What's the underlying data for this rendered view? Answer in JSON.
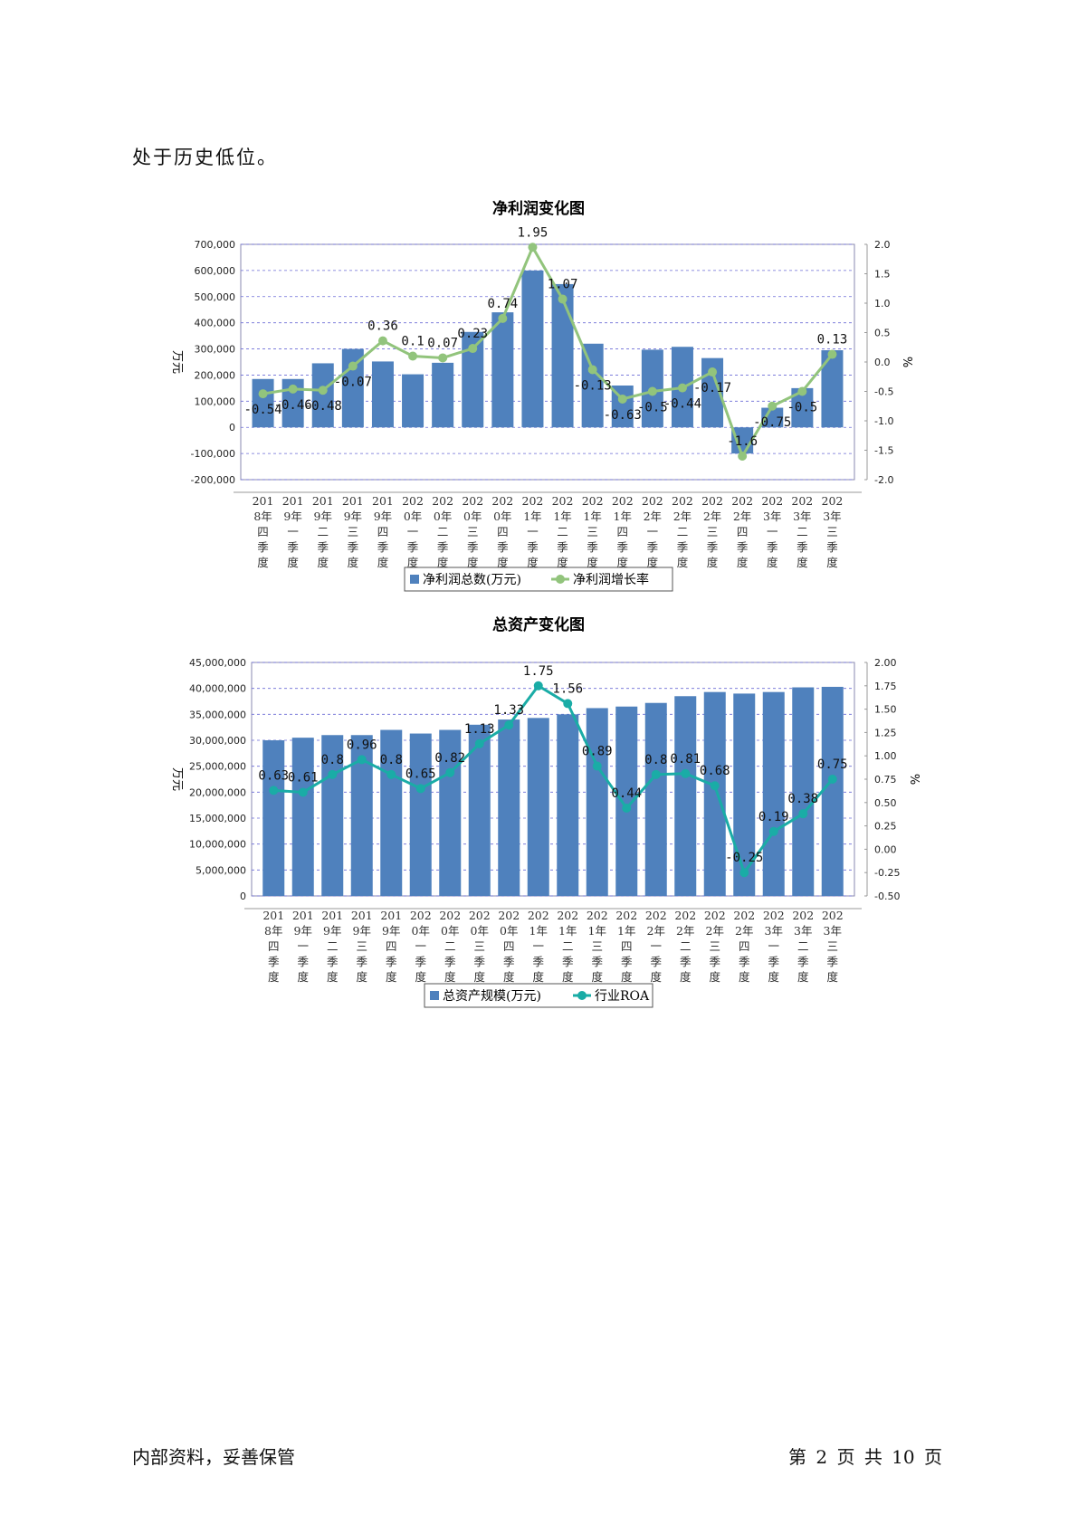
{
  "intro_text": "处于历史低位。",
  "footer": {
    "left": "内部资料，妥善保管",
    "right": "第 2 页   共 10 页"
  },
  "chart_data": [
    {
      "type": "bar+line",
      "title": "净利润变化图",
      "categories": [
        [
          "201",
          "8年",
          "四",
          "季",
          "度"
        ],
        [
          "201",
          "9年",
          "一",
          "季",
          "度"
        ],
        [
          "201",
          "9年",
          "二",
          "季",
          "度"
        ],
        [
          "201",
          "9年",
          "三",
          "季",
          "度"
        ],
        [
          "201",
          "9年",
          "四",
          "季",
          "度"
        ],
        [
          "202",
          "0年",
          "一",
          "季",
          "度"
        ],
        [
          "202",
          "0年",
          "二",
          "季",
          "度"
        ],
        [
          "202",
          "0年",
          "三",
          "季",
          "度"
        ],
        [
          "202",
          "0年",
          "四",
          "季",
          "度"
        ],
        [
          "202",
          "1年",
          "一",
          "季",
          "度"
        ],
        [
          "202",
          "1年",
          "二",
          "季",
          "度"
        ],
        [
          "202",
          "1年",
          "三",
          "季",
          "度"
        ],
        [
          "202",
          "1年",
          "四",
          "季",
          "度"
        ],
        [
          "202",
          "2年",
          "一",
          "季",
          "度"
        ],
        [
          "202",
          "2年",
          "二",
          "季",
          "度"
        ],
        [
          "202",
          "2年",
          "三",
          "季",
          "度"
        ],
        [
          "202",
          "2年",
          "四",
          "季",
          "度"
        ],
        [
          "202",
          "3年",
          "一",
          "季",
          "度"
        ],
        [
          "202",
          "3年",
          "二",
          "季",
          "度"
        ],
        [
          "202",
          "3年",
          "三",
          "季",
          "度"
        ]
      ],
      "left_axis": {
        "label": "万元",
        "min": -200000,
        "max": 700000,
        "step": 100000,
        "tick_labels": [
          "-200,000",
          "-100,000",
          "0",
          "100,000",
          "200,000",
          "300,000",
          "400,000",
          "500,000",
          "600,000",
          "700,000"
        ]
      },
      "right_axis": {
        "label": "%",
        "min": -2.0,
        "max": 2.0,
        "step": 0.5,
        "tick_labels": [
          "-2.0",
          "-1.5",
          "-1.0",
          "-0.5",
          "0.0",
          "0.5",
          "1.0",
          "1.5",
          "2.0"
        ]
      },
      "series": [
        {
          "name": "净利润总数(万元)",
          "kind": "bar",
          "axis": "left",
          "color": "#4f81bd",
          "values": [
            185000,
            185000,
            245000,
            300000,
            252000,
            203000,
            247000,
            365000,
            440000,
            600000,
            548000,
            320000,
            160000,
            297000,
            308000,
            265000,
            -100000,
            75000,
            150000,
            295000
          ]
        },
        {
          "name": "净利润增长率",
          "kind": "line",
          "axis": "right",
          "color": "#92c47c",
          "values": [
            -0.54,
            -0.46,
            -0.48,
            -0.07,
            0.36,
            0.1,
            0.07,
            0.23,
            0.74,
            1.95,
            1.07,
            -0.13,
            -0.63,
            -0.5,
            -0.44,
            -0.17,
            -1.6,
            -0.75,
            -0.5,
            0.13
          ],
          "labels": [
            "-0.54",
            "-0.46",
            "-0.48",
            "-0.07",
            "0.36",
            "0.1",
            "0.07",
            "0.23",
            "0.74",
            "1.95",
            "1.07",
            "-0.13",
            "-0.63",
            "-0.5",
            "-0.44",
            "-0.17",
            "-1.6",
            "-0.75",
            "-0.5",
            "0.13"
          ]
        }
      ],
      "grid": true,
      "legend": "bottom-center"
    },
    {
      "type": "bar+line",
      "title": "总资产变化图",
      "categories": [
        [
          "201",
          "8年",
          "四",
          "季",
          "度"
        ],
        [
          "201",
          "9年",
          "一",
          "季",
          "度"
        ],
        [
          "201",
          "9年",
          "二",
          "季",
          "度"
        ],
        [
          "201",
          "9年",
          "三",
          "季",
          "度"
        ],
        [
          "201",
          "9年",
          "四",
          "季",
          "度"
        ],
        [
          "202",
          "0年",
          "一",
          "季",
          "度"
        ],
        [
          "202",
          "0年",
          "二",
          "季",
          "度"
        ],
        [
          "202",
          "0年",
          "三",
          "季",
          "度"
        ],
        [
          "202",
          "0年",
          "四",
          "季",
          "度"
        ],
        [
          "202",
          "1年",
          "一",
          "季",
          "度"
        ],
        [
          "202",
          "1年",
          "二",
          "季",
          "度"
        ],
        [
          "202",
          "1年",
          "三",
          "季",
          "度"
        ],
        [
          "202",
          "1年",
          "四",
          "季",
          "度"
        ],
        [
          "202",
          "2年",
          "一",
          "季",
          "度"
        ],
        [
          "202",
          "2年",
          "二",
          "季",
          "度"
        ],
        [
          "202",
          "2年",
          "三",
          "季",
          "度"
        ],
        [
          "202",
          "2年",
          "四",
          "季",
          "度"
        ],
        [
          "202",
          "3年",
          "一",
          "季",
          "度"
        ],
        [
          "202",
          "3年",
          "二",
          "季",
          "度"
        ],
        [
          "202",
          "3年",
          "三",
          "季",
          "度"
        ]
      ],
      "left_axis": {
        "label": "万元",
        "min": 0,
        "max": 45000000,
        "step": 5000000,
        "tick_labels": [
          "0",
          "5,000,000",
          "10,000,000",
          "15,000,000",
          "20,000,000",
          "25,000,000",
          "30,000,000",
          "35,000,000",
          "40,000,000",
          "45,000,000"
        ]
      },
      "right_axis": {
        "label": "%",
        "min": -0.5,
        "max": 2.0,
        "step": 0.25,
        "tick_labels": [
          "-0.50",
          "-0.25",
          "0.00",
          "0.25",
          "0.50",
          "0.75",
          "1.00",
          "1.25",
          "1.50",
          "1.75",
          "2.00"
        ]
      },
      "series": [
        {
          "name": "总资产规模(万元)",
          "kind": "bar",
          "axis": "left",
          "color": "#4f81bd",
          "values": [
            30000000,
            30500000,
            31000000,
            31000000,
            32000000,
            31300000,
            32000000,
            33000000,
            34000000,
            34300000,
            35000000,
            36200000,
            36500000,
            37200000,
            38500000,
            39300000,
            39000000,
            39300000,
            40200000,
            40300000
          ]
        },
        {
          "name": "行业ROA",
          "kind": "line",
          "axis": "right",
          "color": "#1aaca6",
          "values": [
            0.63,
            0.61,
            0.8,
            0.96,
            0.8,
            0.65,
            0.82,
            1.13,
            1.33,
            1.75,
            1.56,
            0.89,
            0.44,
            0.8,
            0.81,
            0.68,
            -0.25,
            0.19,
            0.38,
            0.75
          ],
          "labels": [
            "0.63",
            "0.61",
            "0.8",
            "0.96",
            "0.8",
            "0.65",
            "0.82",
            "1.13",
            "1.33",
            "1.75",
            "1.56",
            "0.89",
            "0.44",
            "0.8",
            "0.81",
            "0.68",
            "-0.25",
            "0.19",
            "0.38",
            "0.75"
          ]
        }
      ],
      "grid": true,
      "legend": "bottom-center"
    }
  ]
}
